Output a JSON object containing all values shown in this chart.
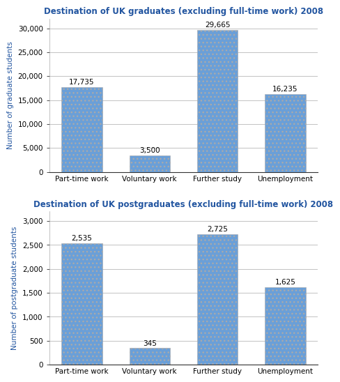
{
  "grad_title": "Destination of UK graduates (excluding full-time work) 2008",
  "postgrad_title": "Destination of UK postgraduates (excluding full-time work) 2008",
  "categories": [
    "Part-time work",
    "Voluntary work",
    "Further study",
    "Unemployment"
  ],
  "grad_values": [
    17735,
    3500,
    29665,
    16235
  ],
  "postgrad_values": [
    2535,
    345,
    2725,
    1625
  ],
  "grad_labels": [
    "17,735",
    "3,500",
    "29,665",
    "16,235"
  ],
  "postgrad_labels": [
    "2,535",
    "345",
    "2,725",
    "1,625"
  ],
  "bar_color": "#6a9fd8",
  "grad_ylabel": "Number of graduate students",
  "postgrad_ylabel": "Number of postgraduate students",
  "grad_ylim": [
    0,
    32000
  ],
  "postgrad_ylim": [
    0,
    3200
  ],
  "grad_yticks": [
    0,
    5000,
    10000,
    15000,
    20000,
    25000,
    30000
  ],
  "postgrad_yticks": [
    0,
    500,
    1000,
    1500,
    2000,
    2500,
    3000
  ],
  "title_color": "#2255a0",
  "ylabel_color": "#2255a0",
  "title_fontsize": 8.5,
  "label_fontsize": 7.5,
  "ylabel_fontsize": 7.5,
  "tick_fontsize": 7.5,
  "background_color": "#ffffff"
}
